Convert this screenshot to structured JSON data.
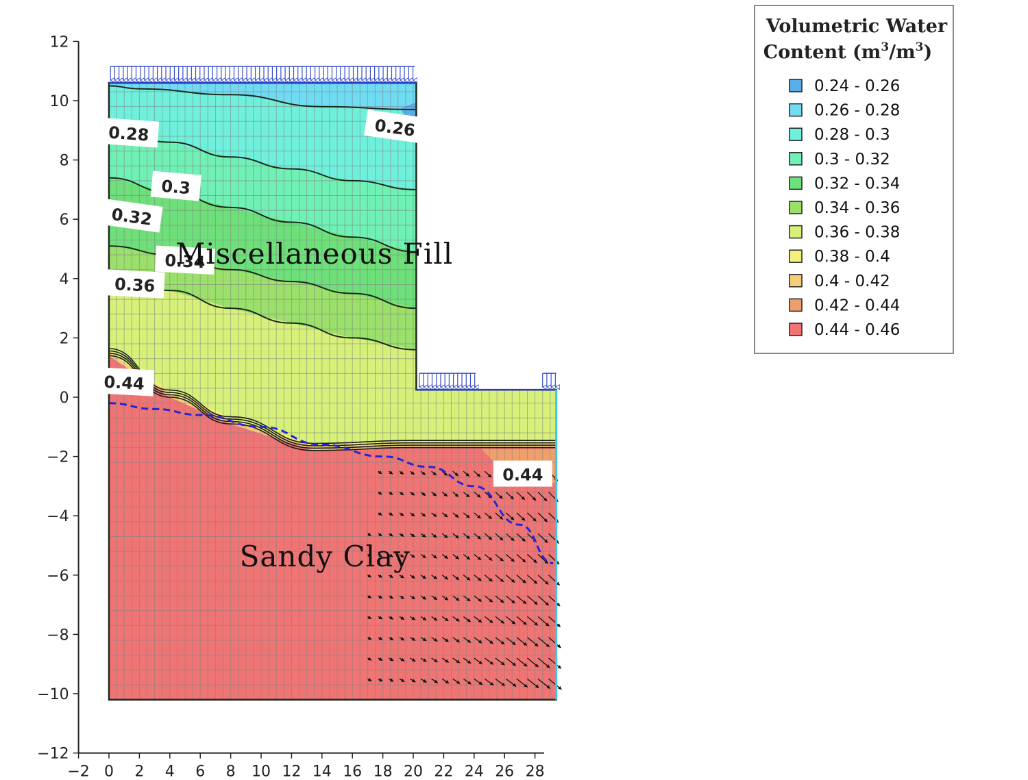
{
  "chart_data": {
    "type": "heatmap",
    "title": "",
    "xlabel": "",
    "ylabel": "",
    "xlim": [
      -2,
      28
    ],
    "ylim": [
      -12,
      12
    ],
    "xticks": [
      "−2",
      "0",
      "2",
      "4",
      "6",
      "8",
      "10",
      "12",
      "14",
      "16",
      "18",
      "20",
      "22",
      "24",
      "26",
      "28"
    ],
    "xtick_values": [
      -2,
      0,
      2,
      4,
      6,
      8,
      10,
      12,
      14,
      16,
      18,
      20,
      22,
      24,
      26,
      28
    ],
    "yticks": [
      "12",
      "10",
      "8",
      "6",
      "4",
      "2",
      "0",
      "−2",
      "−4",
      "−6",
      "−8",
      "−10",
      "−12"
    ],
    "ytick_values": [
      12,
      10,
      8,
      6,
      4,
      2,
      0,
      -2,
      -4,
      -6,
      -8,
      -10,
      -12
    ],
    "legend": {
      "title_line1": "Volumetric Water",
      "title_line2_prefix": "Content (m",
      "title_line2_sup1": "3",
      "title_line2_mid": "/m",
      "title_line2_sup2": "3",
      "title_line2_suffix": ")",
      "placement": "top-right",
      "entries": [
        {
          "label": "0.24 - 0.26",
          "color": "#5aaee8"
        },
        {
          "label": "0.26 - 0.28",
          "color": "#6fdcf4"
        },
        {
          "label": "0.28 - 0.3",
          "color": "#6ff0dc"
        },
        {
          "label": "0.3 - 0.32",
          "color": "#6ff0b4"
        },
        {
          "label": "0.32 - 0.34",
          "color": "#6ee07a"
        },
        {
          "label": "0.34 - 0.36",
          "color": "#9ae06a"
        },
        {
          "label": "0.36 - 0.38",
          "color": "#d6f07a"
        },
        {
          "label": "0.38 - 0.4",
          "color": "#f4f07a"
        },
        {
          "label": "0.4 - 0.42",
          "color": "#f4cc7a"
        },
        {
          "label": "0.42 - 0.44",
          "color": "#ef9f6c"
        },
        {
          "label": "0.44 - 0.46",
          "color": "#ef7474"
        }
      ]
    },
    "contour_labels": [
      {
        "text": "0.28",
        "x": 1.3,
        "y": 8.9,
        "angle": 4
      },
      {
        "text": "0.3",
        "x": 4.4,
        "y": 7.1,
        "angle": 5
      },
      {
        "text": "0.32",
        "x": 1.5,
        "y": 6.1,
        "angle": 8
      },
      {
        "text": "0.34",
        "x": 5.0,
        "y": 4.6,
        "angle": 3
      },
      {
        "text": "0.36",
        "x": 1.7,
        "y": 3.8,
        "angle": 3
      },
      {
        "text": "0.44",
        "x": 1.0,
        "y": 0.5,
        "angle": 3
      },
      {
        "text": "0.26",
        "x": 18.8,
        "y": 9.1,
        "angle": 8
      },
      {
        "text": "0.44",
        "x": 27.2,
        "y": -2.6,
        "angle": 0
      }
    ],
    "layers": [
      {
        "label": "Miscellaneous Fill",
        "x": 13.5,
        "y": 4.5
      },
      {
        "label": "Sandy Clay",
        "x": 14.2,
        "y": -5.7
      }
    ],
    "geometry": {
      "domain_outline": [
        [
          0,
          -10.2
        ],
        [
          0,
          10.6
        ],
        [
          20.2,
          10.6
        ],
        [
          20.2,
          0.25
        ],
        [
          29.4,
          0.25
        ],
        [
          29.4,
          -10.2
        ]
      ],
      "fill_base": [
        [
          0,
          1.4
        ],
        [
          4,
          0.0
        ],
        [
          8,
          -0.9
        ],
        [
          13.5,
          -1.8
        ],
        [
          20,
          -1.7
        ],
        [
          29.4,
          -1.7
        ]
      ],
      "phreatic_line": [
        [
          0,
          -0.2
        ],
        [
          3,
          -0.4
        ],
        [
          6,
          -0.6
        ],
        [
          10,
          -1.0
        ],
        [
          14,
          -1.6
        ],
        [
          18,
          -2.0
        ],
        [
          21,
          -2.35
        ],
        [
          24,
          -3.0
        ],
        [
          27,
          -4.3
        ],
        [
          29.2,
          -5.6
        ]
      ],
      "contours": [
        [
          [
            0,
            10.5
          ],
          [
            2,
            10.4
          ],
          [
            8,
            10.2
          ],
          [
            14,
            9.8
          ],
          [
            20.2,
            9.7
          ]
        ],
        [
          [
            0,
            9.0
          ],
          [
            4,
            8.6
          ],
          [
            8,
            8.1
          ],
          [
            12,
            7.7
          ],
          [
            16,
            7.3
          ],
          [
            20.2,
            7.0
          ]
        ],
        [
          [
            0,
            7.4
          ],
          [
            4,
            6.9
          ],
          [
            8,
            6.4
          ],
          [
            12,
            5.9
          ],
          [
            16,
            5.4
          ],
          [
            20.2,
            4.9
          ]
        ],
        [
          [
            0,
            5.1
          ],
          [
            4,
            4.8
          ],
          [
            8,
            4.3
          ],
          [
            12,
            3.9
          ],
          [
            16,
            3.5
          ],
          [
            20.2,
            3.0
          ]
        ],
        [
          [
            0,
            4.1
          ],
          [
            4,
            3.6
          ],
          [
            8,
            3.0
          ],
          [
            12,
            2.5
          ],
          [
            16,
            2.0
          ],
          [
            20.2,
            1.6
          ]
        ]
      ],
      "loads": [
        {
          "x0": 0.1,
          "x1": 20.1,
          "y": 10.6
        },
        {
          "x0": 20.4,
          "x1": 24.1,
          "y": 0.25
        },
        {
          "x0": 28.5,
          "x1": 29.4,
          "y": 0.25
        }
      ]
    }
  }
}
